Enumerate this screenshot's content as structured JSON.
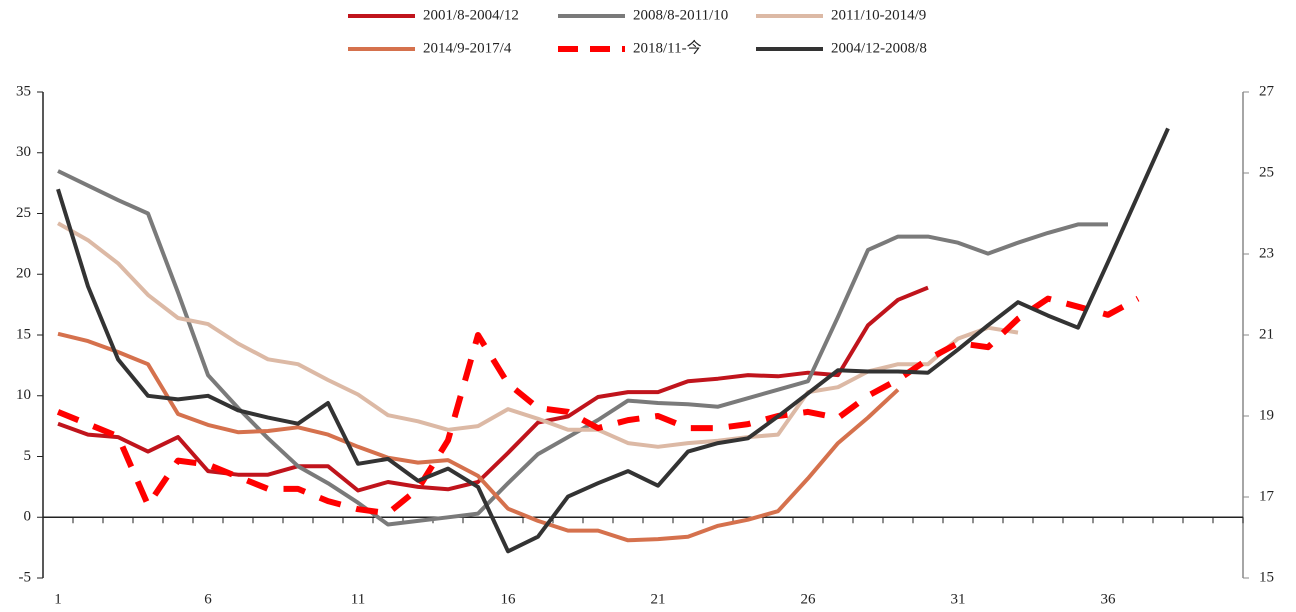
{
  "chart_data": {
    "type": "line",
    "x": [
      1,
      2,
      3,
      4,
      5,
      6,
      7,
      8,
      9,
      10,
      11,
      12,
      13,
      14,
      15,
      16,
      17,
      18,
      19,
      20,
      21,
      22,
      23,
      24,
      25,
      26,
      27,
      28,
      29,
      30,
      31,
      32,
      33,
      34,
      35,
      36,
      37,
      38
    ],
    "xlim": [
      0.5,
      40.5
    ],
    "xticks": [
      1,
      6,
      11,
      16,
      21,
      26,
      31,
      36
    ],
    "ylim": [
      -5,
      35
    ],
    "yticks": [
      -5,
      0,
      5,
      10,
      15,
      20,
      25,
      30,
      35
    ],
    "y2lim": [
      15,
      27
    ],
    "y2ticks": [
      15,
      17,
      19,
      21,
      23,
      25,
      27
    ],
    "legend": "top",
    "series": [
      {
        "name": "2001/8-2004/12",
        "color": "#c0141c",
        "values": [
          7.7,
          6.8,
          6.6,
          5.4,
          6.6,
          3.8,
          3.5,
          3.5,
          4.2,
          4.2,
          2.2,
          2.9,
          2.5,
          2.3,
          2.9,
          5.3,
          7.8,
          8.3,
          9.9,
          10.3,
          10.3,
          11.2,
          11.4,
          11.7,
          11.6,
          11.9,
          11.7,
          15.8,
          17.9,
          18.9,
          null,
          null,
          null,
          null,
          null,
          null,
          null,
          null
        ]
      },
      {
        "name": "2008/8-2011/10",
        "color": "#7a7a7a",
        "values": [
          28.5,
          27.3,
          26.1,
          25.0,
          18.5,
          11.7,
          9.0,
          6.5,
          4.2,
          2.8,
          1.2,
          -0.6,
          -0.3,
          0,
          0.3,
          2.8,
          5.2,
          6.6,
          8.0,
          9.6,
          9.4,
          9.3,
          9.1,
          9.8,
          10.5,
          11.2,
          16.5,
          22.0,
          23.1,
          23.1,
          22.6,
          21.7,
          22.6,
          23.4,
          24.1,
          24.1,
          null,
          null
        ]
      },
      {
        "name": "2011/10-2014/9",
        "color": "#dcb9a5",
        "values": [
          24.2,
          22.8,
          20.9,
          18.3,
          16.4,
          15.9,
          14.3,
          13.0,
          12.6,
          11.3,
          10.1,
          8.4,
          7.9,
          7.2,
          7.5,
          8.9,
          8.1,
          7.2,
          7.2,
          6.1,
          5.8,
          6.1,
          6.3,
          6.6,
          6.8,
          10.3,
          10.7,
          12.0,
          12.6,
          12.6,
          14.7,
          15.6,
          15.2,
          null,
          null,
          null,
          null,
          null
        ]
      },
      {
        "name": "2014/9-2017/4",
        "color": "#d5714d",
        "values": [
          15.1,
          14.5,
          13.6,
          12.6,
          8.5,
          7.6,
          7.0,
          7.1,
          7.4,
          6.8,
          5.8,
          4.9,
          4.5,
          4.7,
          3.4,
          0.7,
          -0.3,
          -1.1,
          -1.1,
          -1.9,
          -1.8,
          -1.6,
          -0.7,
          -0.2,
          0.5,
          3.2,
          6.1,
          8.2,
          10.5,
          null,
          null,
          null,
          null,
          null,
          null,
          null,
          null,
          null
        ]
      },
      {
        "name": "2018/11-今",
        "color": "#ff0000",
        "dashed": true,
        "axis": "y2",
        "values": [
          19.1,
          18.8,
          18.5,
          16.8,
          17.9,
          17.8,
          17.5,
          17.2,
          17.2,
          16.9,
          16.7,
          16.6,
          17.2,
          18.4,
          21.0,
          19.8,
          19.2,
          19.1,
          18.7,
          18.9,
          19.0,
          18.7,
          18.7,
          18.8,
          19.0,
          19.1,
          18.95,
          19.5,
          19.9,
          20.4,
          20.8,
          20.7,
          21.4,
          21.9,
          21.7,
          21.5,
          21.9,
          null
        ]
      },
      {
        "name": "2004/12-2008/8",
        "color": "#333333",
        "values": [
          27.0,
          19.0,
          13.0,
          10.0,
          9.7,
          10.0,
          8.8,
          8.2,
          7.7,
          9.4,
          4.4,
          4.8,
          3.0,
          4.0,
          2.5,
          -2.8,
          -1.6,
          1.7,
          2.8,
          3.8,
          2.6,
          5.4,
          6.1,
          6.5,
          8.3,
          10.2,
          12.1,
          12.0,
          12.0,
          11.9,
          13.8,
          15.8,
          17.7,
          16.6,
          15.6,
          21.0,
          26.5,
          32.0
        ]
      }
    ]
  }
}
